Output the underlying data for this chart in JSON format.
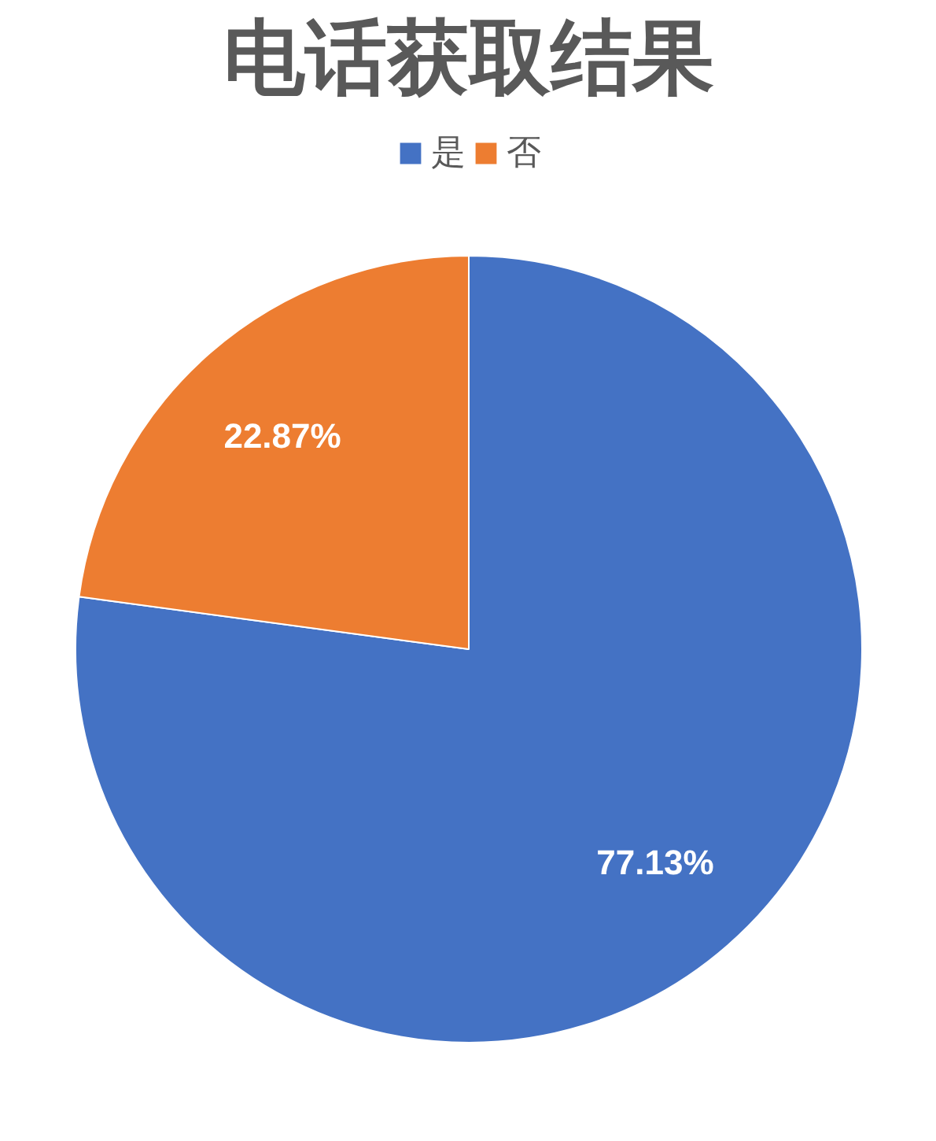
{
  "chart_data": {
    "type": "pie",
    "title": "电话获取结果",
    "categories": [
      "是",
      "否"
    ],
    "values": [
      77.13,
      22.87
    ],
    "colors": [
      "#4472c4",
      "#ed7d31"
    ],
    "value_labels": [
      "77.13%",
      "22.87%"
    ],
    "legend": "top"
  }
}
